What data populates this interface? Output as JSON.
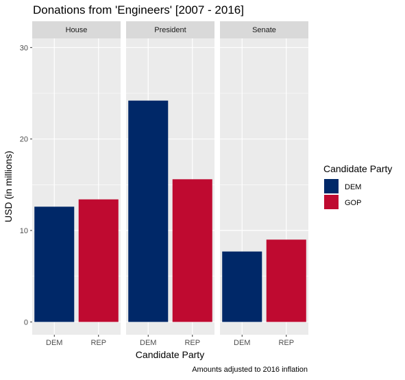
{
  "chart_data": {
    "type": "bar",
    "title": "Donations from 'Engineers' [2007 - 2016]",
    "xlabel": "Candidate Party",
    "ylabel": "USD (in millions)",
    "caption": "Amounts adjusted to 2016 inflation",
    "ylim": [
      -1.4,
      31.0
    ],
    "yticks": [
      0,
      10,
      20,
      30
    ],
    "categories": [
      "DEM",
      "REP"
    ],
    "facets": [
      {
        "label": "House",
        "values": [
          12.6,
          13.4
        ]
      },
      {
        "label": "President",
        "values": [
          24.2,
          15.6
        ]
      },
      {
        "label": "Senate",
        "values": [
          7.7,
          9.0
        ]
      }
    ],
    "legend": {
      "title": "Candidate Party",
      "position": "right",
      "entries": [
        {
          "label": "DEM",
          "color": "#002868"
        },
        {
          "label": "GOP",
          "color": "#BF0A30"
        }
      ]
    },
    "colors": {
      "DEM": "#002868",
      "REP": "#BF0A30",
      "panel": "#EBEBEB",
      "strip": "#D9D9D9"
    },
    "grid": true
  }
}
